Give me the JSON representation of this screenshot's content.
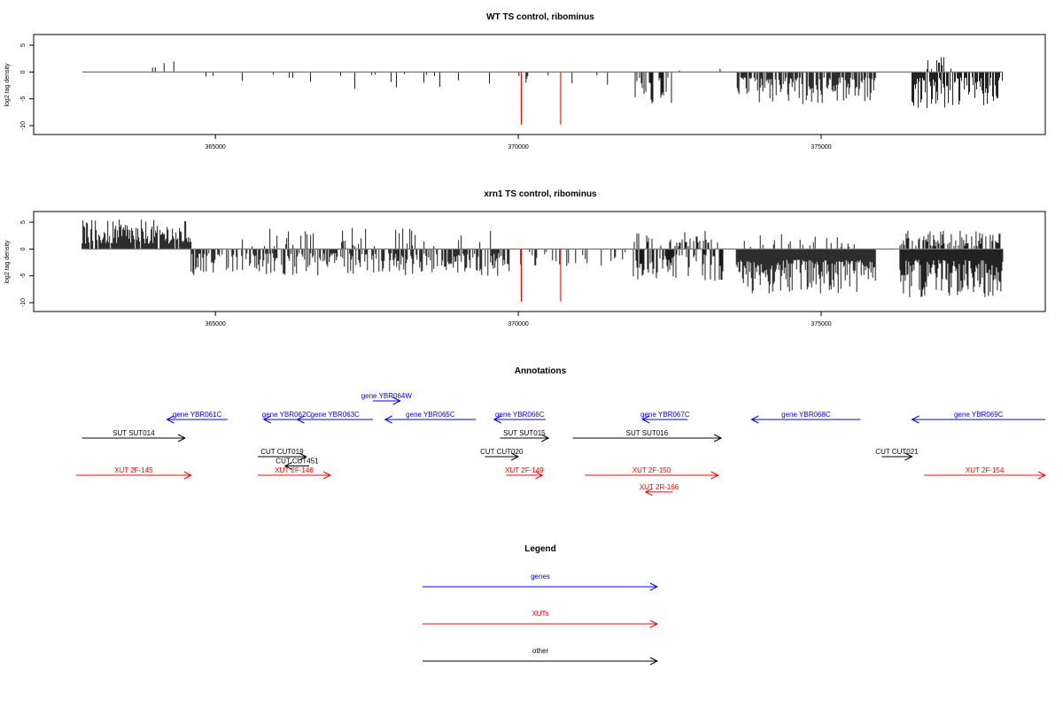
{
  "colors": {
    "gene": "#0000ff",
    "xut": "#ff0000",
    "other": "#000000",
    "red_mark": "#ff0000"
  },
  "chart_data": [
    {
      "type": "bar",
      "title": "WT TS control, ribominus",
      "ylabel": "log2 tag density",
      "xlim": [
        362000,
        378700
      ],
      "ylim": [
        -10,
        6
      ],
      "xticks": [
        365000,
        370000,
        375000
      ],
      "xtick_labels": [
        "365000",
        "370000",
        "375000"
      ],
      "yticks": [
        -10,
        -5,
        0,
        5
      ],
      "ytick_labels": [
        "-10",
        "-5",
        "0",
        "5"
      ],
      "baseline": {
        "from": 362800,
        "to": 378000
      },
      "red_marks": [
        {
          "x": 370050,
          "y": -9.8
        },
        {
          "x": 370700,
          "y": -9.8
        }
      ],
      "dense_regions": [
        {
          "from": 363100,
          "to": 364550,
          "sign": 1,
          "min": 0.5,
          "max": 3.5,
          "density": 0.025
        },
        {
          "from": 364700,
          "to": 369850,
          "sign": -1,
          "min": 0.4,
          "max": 3.2,
          "density": 0.02
        },
        {
          "from": 369850,
          "to": 371900,
          "sign": -1,
          "min": 0.3,
          "max": 2.5,
          "density": 0.01
        },
        {
          "from": 371900,
          "to": 372600,
          "sign": -1,
          "min": 1.0,
          "max": 6.5,
          "density": 0.15
        },
        {
          "from": 372600,
          "to": 373600,
          "sign": 1,
          "min": 0.3,
          "max": 2.0,
          "density": 0.008
        },
        {
          "from": 373600,
          "to": 375900,
          "sign": -1,
          "min": 1.0,
          "max": 6.0,
          "density": 0.25
        },
        {
          "from": 376500,
          "to": 378000,
          "sign": -1,
          "min": 1.0,
          "max": 7.0,
          "density": 0.25
        },
        {
          "from": 376600,
          "to": 377300,
          "sign": 1,
          "min": 0.5,
          "max": 3.0,
          "density": 0.02
        }
      ]
    },
    {
      "type": "bar",
      "title": "xrn1 TS control, ribominus",
      "ylabel": "log2 tag density",
      "xlim": [
        362000,
        378700
      ],
      "ylim": [
        -10,
        6
      ],
      "xticks": [
        365000,
        370000,
        375000
      ],
      "xtick_labels": [
        "365000",
        "370000",
        "375000"
      ],
      "yticks": [
        -10,
        -5,
        0,
        5
      ],
      "ytick_labels": [
        "-10",
        "-5",
        "0",
        "5"
      ],
      "baseline": {
        "from": 362800,
        "to": 378000
      },
      "red_marks": [
        {
          "x": 370050,
          "y": -9.8
        },
        {
          "x": 370700,
          "y": -9.8
        }
      ],
      "dense_regions": [
        {
          "from": 362800,
          "to": 364600,
          "sign": 1,
          "min": 1.0,
          "max": 5.5,
          "density": 0.3
        },
        {
          "from": 364600,
          "to": 369850,
          "sign": -1,
          "min": 0.8,
          "max": 5.0,
          "density": 0.2
        },
        {
          "from": 365300,
          "to": 369700,
          "sign": 1,
          "min": 0.5,
          "max": 4.0,
          "density": 0.04
        },
        {
          "from": 369850,
          "to": 371900,
          "sign": -1,
          "min": 0.5,
          "max": 3.5,
          "density": 0.06
        },
        {
          "from": 371900,
          "to": 373400,
          "sign": -1,
          "min": 1.0,
          "max": 6.0,
          "density": 0.2
        },
        {
          "from": 371900,
          "to": 373400,
          "sign": 1,
          "min": 0.5,
          "max": 3.5,
          "density": 0.1
        },
        {
          "from": 373600,
          "to": 375900,
          "sign": -1,
          "min": 2.0,
          "max": 8.5,
          "density": 0.5
        },
        {
          "from": 373600,
          "to": 375900,
          "sign": 1,
          "min": 0.3,
          "max": 3.0,
          "density": 0.05
        },
        {
          "from": 376300,
          "to": 378000,
          "sign": -1,
          "min": 2.0,
          "max": 9.0,
          "density": 0.5
        },
        {
          "from": 376300,
          "to": 378000,
          "sign": 1,
          "min": 0.5,
          "max": 3.5,
          "density": 0.15
        }
      ]
    }
  ],
  "annotations": {
    "title": "Annotations",
    "xlim": [
      362000,
      378700
    ],
    "items": [
      {
        "label": "gene YBR061C",
        "type": "gene",
        "start": 364200,
        "end": 365200,
        "dir": "left",
        "row": 1
      },
      {
        "label": "gene YBR062C",
        "type": "gene",
        "start": 365800,
        "end": 366550,
        "dir": "left",
        "row": 1
      },
      {
        "label": "gene YBR063C",
        "type": "gene",
        "start": 366350,
        "end": 367600,
        "dir": "left",
        "row": 1
      },
      {
        "label": "gene YBR064W",
        "type": "gene",
        "start": 367600,
        "end": 368050,
        "dir": "right",
        "row": 0
      },
      {
        "label": "gene YBR065C",
        "type": "gene",
        "start": 367800,
        "end": 369300,
        "dir": "left",
        "row": 1
      },
      {
        "label": "gene YBR066C",
        "type": "gene",
        "start": 369600,
        "end": 370450,
        "dir": "left",
        "row": 1
      },
      {
        "label": "gene YBR067C",
        "type": "gene",
        "start": 372050,
        "end": 372800,
        "dir": "left",
        "row": 1
      },
      {
        "label": "gene YBR068C",
        "type": "gene",
        "start": 373850,
        "end": 375650,
        "dir": "left",
        "row": 1
      },
      {
        "label": "gene YBR069C",
        "type": "gene",
        "start": 376500,
        "end": 378700,
        "dir": "left",
        "row": 1
      },
      {
        "label": "SUT SUT014",
        "type": "other",
        "start": 362800,
        "end": 364500,
        "dir": "right",
        "row": 2
      },
      {
        "label": "SUT SUT015",
        "type": "other",
        "start": 369700,
        "end": 370500,
        "dir": "right",
        "row": 2
      },
      {
        "label": "SUT SUT016",
        "type": "other",
        "start": 370900,
        "end": 373350,
        "dir": "right",
        "row": 2
      },
      {
        "label": "CUT CUT019",
        "type": "other",
        "start": 365700,
        "end": 366500,
        "dir": "right",
        "row": 3
      },
      {
        "label": "CUT CUT020",
        "type": "other",
        "start": 369450,
        "end": 370000,
        "dir": "right",
        "row": 3
      },
      {
        "label": "CUT CUT021",
        "type": "other",
        "start": 376000,
        "end": 376500,
        "dir": "right",
        "row": 3
      },
      {
        "label": "CUT CUT451",
        "type": "other",
        "start": 366150,
        "end": 366550,
        "dir": "left",
        "row": 3.5
      },
      {
        "label": "XUT 2F-145",
        "type": "xut",
        "start": 362700,
        "end": 364600,
        "dir": "right",
        "row": 4
      },
      {
        "label": "XUT 2F-146",
        "type": "xut",
        "start": 365700,
        "end": 366900,
        "dir": "right",
        "row": 4
      },
      {
        "label": "XUT 2F-149",
        "type": "xut",
        "start": 369800,
        "end": 370400,
        "dir": "right",
        "row": 4
      },
      {
        "label": "XUT 2F-150",
        "type": "xut",
        "start": 371100,
        "end": 373300,
        "dir": "right",
        "row": 4
      },
      {
        "label": "XUT 2R-166",
        "type": "xut",
        "start": 372100,
        "end": 372550,
        "dir": "left",
        "row": 4.9
      },
      {
        "label": "XUT 2F-154",
        "type": "xut",
        "start": 376700,
        "end": 378700,
        "dir": "right",
        "row": 4
      }
    ]
  },
  "legend": {
    "title": "Legend",
    "items": [
      {
        "label": "genes",
        "type": "gene"
      },
      {
        "label": "XUTs",
        "type": "xut"
      },
      {
        "label": "other",
        "type": "other"
      }
    ]
  }
}
